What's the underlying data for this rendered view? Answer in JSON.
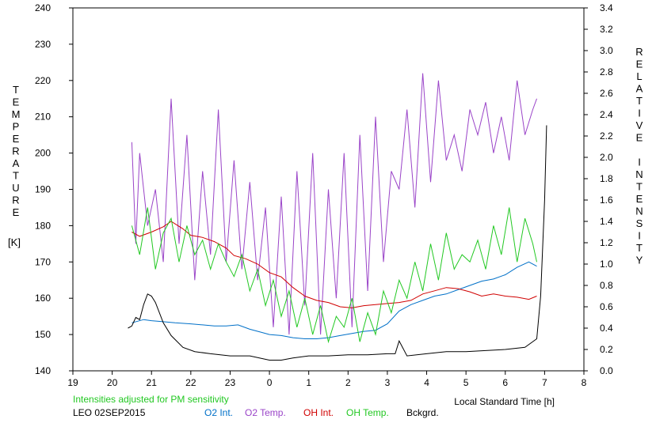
{
  "chart_data": {
    "type": "line",
    "title": "",
    "xlabel": "Local Standard Time [h]",
    "ylabel_left": [
      "T",
      "E",
      "M",
      "P",
      "E",
      "R",
      "A",
      "T",
      "U",
      "R",
      "E"
    ],
    "ylabel_left_unit": "[K]",
    "ylabel_right": [
      "R",
      "E",
      "L",
      "A",
      "T",
      "I",
      "V",
      "E",
      "",
      "I",
      "N",
      "T",
      "E",
      "N",
      "S",
      "I",
      "T",
      "Y"
    ],
    "xticks": [
      "19",
      "20",
      "21",
      "22",
      "23",
      "0",
      "1",
      "2",
      "3",
      "4",
      "5",
      "6",
      "7",
      "8"
    ],
    "xlim": [
      19,
      32
    ],
    "ylim_left": [
      140,
      240
    ],
    "ylim_right": [
      0.0,
      3.4
    ],
    "yticks_left": [
      "140",
      "150",
      "160",
      "170",
      "180",
      "190",
      "200",
      "210",
      "220",
      "230",
      "240"
    ],
    "yticks_right": [
      "0.0",
      "0.2",
      "0.4",
      "0.6",
      "0.8",
      "1.0",
      "1.2",
      "1.4",
      "1.6",
      "1.8",
      "2.0",
      "2.2",
      "2.4",
      "2.6",
      "2.8",
      "3.0",
      "3.2",
      "3.4"
    ],
    "note": "Intensities adjusted for PM sensitivity",
    "station_date": "LEO 02SEP2015",
    "series": [
      {
        "name": "O2 Int.",
        "color": "#0070c8",
        "axis": "right",
        "x": [
          20.5,
          20.8,
          21.0,
          21.3,
          21.6,
          22.0,
          22.3,
          22.6,
          22.9,
          23.2,
          23.5,
          23.8,
          24.0,
          24.3,
          24.6,
          24.9,
          25.2,
          25.5,
          25.8,
          26.1,
          26.4,
          26.7,
          27.0,
          27.3,
          27.6,
          27.9,
          28.2,
          28.5,
          28.8,
          29.1,
          29.4,
          29.7,
          30.0,
          30.3,
          30.6,
          30.8
        ],
        "y": [
          0.45,
          0.48,
          0.47,
          0.46,
          0.45,
          0.44,
          0.43,
          0.42,
          0.42,
          0.43,
          0.39,
          0.36,
          0.34,
          0.33,
          0.31,
          0.3,
          0.3,
          0.31,
          0.33,
          0.35,
          0.37,
          0.38,
          0.44,
          0.56,
          0.62,
          0.66,
          0.7,
          0.72,
          0.76,
          0.8,
          0.84,
          0.86,
          0.9,
          0.97,
          1.02,
          0.98
        ]
      },
      {
        "name": "O2 Temp.",
        "color": "#9a44c8",
        "axis": "left",
        "x": [
          20.5,
          20.6,
          20.7,
          20.9,
          21.1,
          21.3,
          21.5,
          21.7,
          21.9,
          22.1,
          22.3,
          22.5,
          22.7,
          22.9,
          23.1,
          23.3,
          23.5,
          23.7,
          23.9,
          24.1,
          24.3,
          24.5,
          24.7,
          24.9,
          25.1,
          25.3,
          25.5,
          25.7,
          25.9,
          26.1,
          26.3,
          26.5,
          26.7,
          26.9,
          27.1,
          27.3,
          27.5,
          27.7,
          27.9,
          28.1,
          28.3,
          28.5,
          28.7,
          28.9,
          29.1,
          29.3,
          29.5,
          29.7,
          29.9,
          30.1,
          30.3,
          30.5,
          30.7,
          30.8
        ],
        "y": [
          203,
          175,
          200,
          180,
          190,
          170,
          215,
          175,
          205,
          165,
          195,
          172,
          212,
          170,
          198,
          168,
          192,
          165,
          185,
          152,
          188,
          150,
          195,
          158,
          200,
          150,
          190,
          160,
          200,
          152,
          205,
          162,
          210,
          170,
          195,
          190,
          212,
          185,
          222,
          192,
          220,
          198,
          205,
          195,
          212,
          205,
          214,
          200,
          210,
          198,
          220,
          205,
          212,
          215
        ]
      },
      {
        "name": "OH Int.",
        "color": "#d00000",
        "axis": "right",
        "x": [
          20.5,
          20.7,
          21.0,
          21.3,
          21.5,
          21.8,
          22.0,
          22.3,
          22.6,
          22.9,
          23.1,
          23.4,
          23.7,
          24.0,
          24.3,
          24.6,
          24.9,
          25.2,
          25.5,
          25.8,
          26.1,
          26.4,
          26.7,
          27.0,
          27.3,
          27.6,
          27.9,
          28.2,
          28.5,
          28.8,
          29.1,
          29.4,
          29.7,
          30.0,
          30.3,
          30.6,
          30.8
        ],
        "y": [
          1.3,
          1.26,
          1.3,
          1.35,
          1.4,
          1.33,
          1.27,
          1.25,
          1.21,
          1.15,
          1.08,
          1.05,
          1.0,
          0.92,
          0.88,
          0.78,
          0.7,
          0.66,
          0.64,
          0.6,
          0.59,
          0.61,
          0.62,
          0.63,
          0.64,
          0.66,
          0.72,
          0.75,
          0.78,
          0.77,
          0.74,
          0.7,
          0.72,
          0.7,
          0.69,
          0.67,
          0.7
        ]
      },
      {
        "name": "OH Temp.",
        "color": "#22c822",
        "axis": "left",
        "x": [
          20.5,
          20.7,
          20.9,
          21.1,
          21.3,
          21.5,
          21.7,
          21.9,
          22.1,
          22.3,
          22.5,
          22.7,
          22.9,
          23.1,
          23.3,
          23.5,
          23.7,
          23.9,
          24.1,
          24.3,
          24.5,
          24.7,
          24.9,
          25.1,
          25.3,
          25.5,
          25.7,
          25.9,
          26.1,
          26.3,
          26.5,
          26.7,
          26.9,
          27.1,
          27.3,
          27.5,
          27.7,
          27.9,
          28.1,
          28.3,
          28.5,
          28.7,
          28.9,
          29.1,
          29.3,
          29.5,
          29.7,
          29.9,
          30.1,
          30.3,
          30.5,
          30.7,
          30.8
        ],
        "y": [
          180,
          172,
          185,
          168,
          178,
          182,
          170,
          180,
          172,
          176,
          168,
          175,
          170,
          166,
          172,
          162,
          168,
          158,
          165,
          155,
          162,
          152,
          160,
          150,
          158,
          148,
          155,
          152,
          160,
          148,
          156,
          150,
          162,
          156,
          165,
          160,
          170,
          162,
          175,
          165,
          178,
          168,
          172,
          170,
          176,
          168,
          180,
          172,
          185,
          170,
          182,
          175,
          170
        ]
      },
      {
        "name": "Bckgrd.",
        "color": "#000000",
        "axis": "right",
        "x": [
          20.4,
          20.5,
          20.6,
          20.7,
          20.8,
          20.9,
          21.0,
          21.1,
          21.3,
          21.5,
          21.8,
          22.1,
          22.5,
          23.0,
          23.5,
          24.0,
          24.3,
          24.6,
          25.0,
          25.5,
          26.0,
          26.5,
          27.0,
          27.2,
          27.3,
          27.5,
          28.0,
          28.5,
          29.0,
          29.5,
          30.0,
          30.5,
          30.8,
          30.9,
          31.0,
          31.05
        ],
        "y": [
          0.4,
          0.42,
          0.5,
          0.48,
          0.62,
          0.72,
          0.7,
          0.64,
          0.45,
          0.33,
          0.22,
          0.18,
          0.16,
          0.14,
          0.14,
          0.1,
          0.1,
          0.12,
          0.14,
          0.14,
          0.15,
          0.15,
          0.16,
          0.16,
          0.28,
          0.14,
          0.16,
          0.18,
          0.18,
          0.19,
          0.2,
          0.22,
          0.3,
          0.7,
          1.6,
          2.3
        ]
      }
    ]
  }
}
